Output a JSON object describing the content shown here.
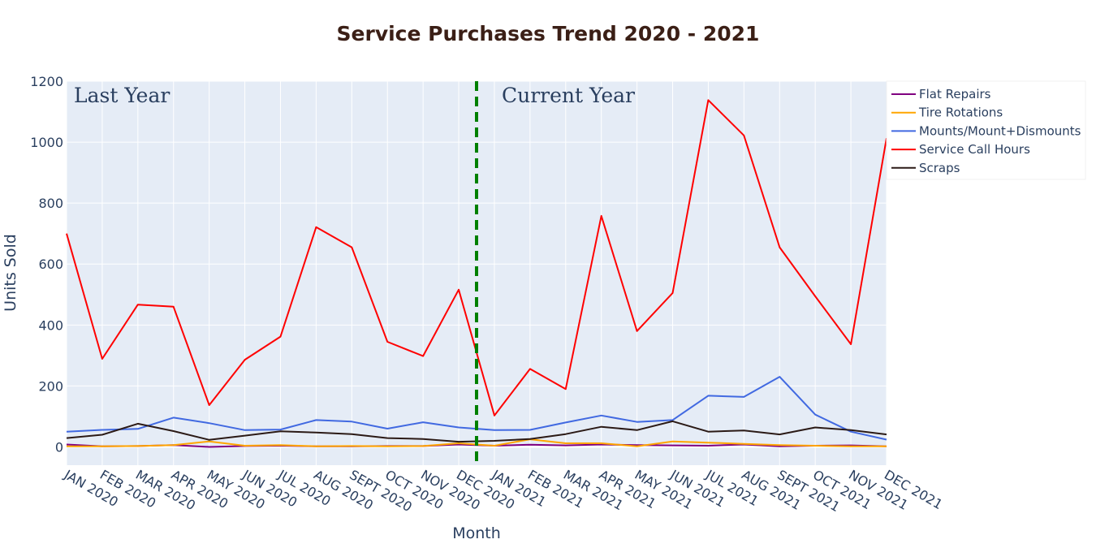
{
  "chart_data": {
    "type": "line",
    "title": "Service Purchases Trend 2020 - 2021",
    "xlabel": "Month",
    "ylabel": "Units Sold",
    "ylim": [
      -60,
      1200
    ],
    "yticks": [
      0,
      200,
      400,
      600,
      800,
      1000,
      1200
    ],
    "grid": true,
    "legend_position": "top-right",
    "categories": [
      "JAN 2020",
      "FEB 2020",
      "MAR 2020",
      "APR 2020",
      "MAY 2020",
      "JUN 2020",
      "JUL 2020",
      "AUG 2020",
      "SEPT 2020",
      "OCT 2020",
      "NOV 2020",
      "DEC 2020",
      "JAN 2021",
      "FEB 2021",
      "MAR 2021",
      "APR 2021",
      "MAY 2021",
      "JUN 2021",
      "JUL 2021",
      "AUG 2021",
      "SEPT 2021",
      "OCT 2021",
      "NOV 2021",
      "DEC 2021"
    ],
    "series": [
      {
        "name": "Flat Repairs",
        "color": "#800080",
        "values": [
          8,
          2,
          3,
          6,
          0,
          3,
          4,
          2,
          2,
          3,
          3,
          8,
          4,
          7,
          5,
          8,
          6,
          5,
          4,
          8,
          2,
          4,
          5,
          2
        ]
      },
      {
        "name": "Tire Rotations",
        "color": "#ffa500",
        "values": [
          2,
          2,
          3,
          6,
          18,
          4,
          6,
          2,
          3,
          2,
          3,
          12,
          4,
          25,
          12,
          12,
          2,
          18,
          14,
          10,
          6,
          4,
          2,
          2
        ]
      },
      {
        "name": "Mounts/Mount+Dismounts",
        "color": "#4169e1",
        "values": [
          50,
          56,
          59,
          96,
          78,
          55,
          57,
          88,
          83,
          60,
          81,
          64,
          55,
          56,
          80,
          103,
          82,
          88,
          168,
          164,
          230,
          106,
          50,
          24
        ]
      },
      {
        "name": "Service Call Hours",
        "color": "#ff0000",
        "values": [
          700,
          289,
          467,
          460,
          137,
          286,
          362,
          721,
          655,
          345,
          298,
          516,
          103,
          256,
          190,
          758,
          380,
          505,
          1138,
          1022,
          655,
          494,
          337,
          1013
        ]
      },
      {
        "name": "Scraps",
        "color": "#2b1a16",
        "values": [
          29,
          40,
          76,
          52,
          23,
          37,
          51,
          47,
          42,
          29,
          26,
          17,
          20,
          26,
          42,
          66,
          55,
          84,
          50,
          54,
          41,
          64,
          55,
          41
        ]
      }
    ],
    "divider": {
      "after_category": "DEC 2020",
      "color": "#008000"
    },
    "annotations": [
      "Last Year",
      "Current Year"
    ]
  }
}
